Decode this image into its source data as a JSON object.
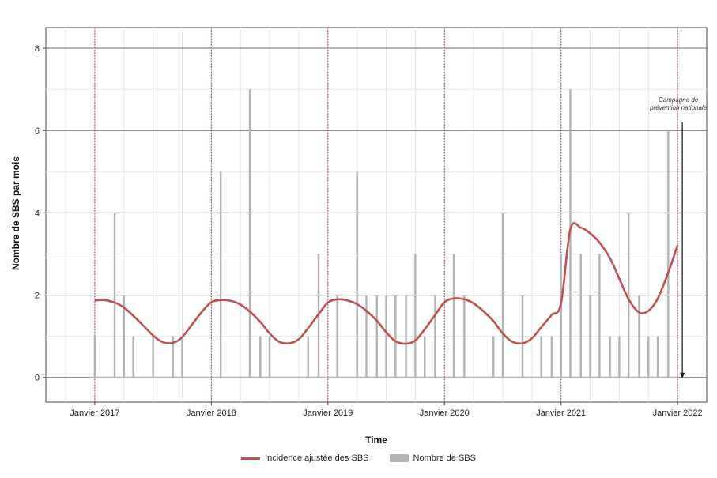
{
  "chart_data": {
    "type": "bar",
    "title": "",
    "xlabel": "Time",
    "ylabel": "Nombre de SBS par mois",
    "xlim": [
      2016.58,
      2022.25
    ],
    "ylim": [
      -0.6,
      8.5
    ],
    "y_ticks": [
      0,
      2,
      4,
      6,
      8
    ],
    "x_ticks": [
      {
        "x": 2017,
        "label": "Janvier 2017"
      },
      {
        "x": 2018,
        "label": "Janvier 2018"
      },
      {
        "x": 2019,
        "label": "Janvier 2019"
      },
      {
        "x": 2020,
        "label": "Janvier 2020"
      },
      {
        "x": 2021,
        "label": "Janvier 2021"
      },
      {
        "x": 2022,
        "label": "Janvier 2022"
      }
    ],
    "vertical_reference_lines": [
      2017,
      2018,
      2019,
      2020,
      2021,
      2022
    ],
    "grid": true,
    "legend_position": "bottom",
    "series": [
      {
        "name": "Nombre de SBS",
        "type": "bar",
        "color": "#b3b3b3",
        "points": [
          [
            2017.0,
            1
          ],
          [
            2017.17,
            4
          ],
          [
            2017.25,
            2
          ],
          [
            2017.33,
            1
          ],
          [
            2017.5,
            1
          ],
          [
            2017.67,
            1
          ],
          [
            2017.75,
            1
          ],
          [
            2018.08,
            5
          ],
          [
            2018.33,
            7
          ],
          [
            2018.42,
            1
          ],
          [
            2018.5,
            1
          ],
          [
            2018.83,
            1
          ],
          [
            2018.92,
            3
          ],
          [
            2019.08,
            2
          ],
          [
            2019.25,
            5
          ],
          [
            2019.33,
            2
          ],
          [
            2019.42,
            2
          ],
          [
            2019.5,
            2
          ],
          [
            2019.58,
            2
          ],
          [
            2019.67,
            2
          ],
          [
            2019.75,
            3
          ],
          [
            2019.83,
            1
          ],
          [
            2019.92,
            2
          ],
          [
            2019.92,
            1
          ],
          [
            2020.08,
            3
          ],
          [
            2020.17,
            2
          ],
          [
            2020.42,
            1
          ],
          [
            2020.5,
            4
          ],
          [
            2020.67,
            2
          ],
          [
            2020.83,
            1
          ],
          [
            2020.92,
            1
          ],
          [
            2021.0,
            3
          ],
          [
            2021.08,
            7
          ],
          [
            2021.17,
            3
          ],
          [
            2021.25,
            2
          ],
          [
            2021.33,
            3
          ],
          [
            2021.42,
            1
          ],
          [
            2021.5,
            1
          ],
          [
            2021.58,
            4
          ],
          [
            2021.67,
            2
          ],
          [
            2021.75,
            1
          ],
          [
            2021.83,
            1
          ],
          [
            2021.92,
            6
          ]
        ]
      },
      {
        "name": "Incidence ajustée des SBS",
        "type": "line",
        "color": "#c0504d",
        "points": [
          [
            2017.0,
            1.87
          ],
          [
            2017.08,
            1.88
          ],
          [
            2017.17,
            1.82
          ],
          [
            2017.25,
            1.7
          ],
          [
            2017.33,
            1.5
          ],
          [
            2017.42,
            1.25
          ],
          [
            2017.5,
            1.02
          ],
          [
            2017.58,
            0.86
          ],
          [
            2017.67,
            0.84
          ],
          [
            2017.75,
            0.98
          ],
          [
            2017.83,
            1.27
          ],
          [
            2017.92,
            1.6
          ],
          [
            2018.0,
            1.83
          ],
          [
            2018.08,
            1.88
          ],
          [
            2018.17,
            1.86
          ],
          [
            2018.25,
            1.77
          ],
          [
            2018.33,
            1.6
          ],
          [
            2018.42,
            1.35
          ],
          [
            2018.5,
            1.07
          ],
          [
            2018.58,
            0.87
          ],
          [
            2018.67,
            0.83
          ],
          [
            2018.75,
            0.93
          ],
          [
            2018.83,
            1.2
          ],
          [
            2018.92,
            1.54
          ],
          [
            2019.0,
            1.82
          ],
          [
            2019.08,
            1.9
          ],
          [
            2019.17,
            1.87
          ],
          [
            2019.25,
            1.78
          ],
          [
            2019.33,
            1.62
          ],
          [
            2019.42,
            1.38
          ],
          [
            2019.5,
            1.1
          ],
          [
            2019.58,
            0.88
          ],
          [
            2019.67,
            0.82
          ],
          [
            2019.75,
            0.9
          ],
          [
            2019.83,
            1.17
          ],
          [
            2019.92,
            1.52
          ],
          [
            2020.0,
            1.83
          ],
          [
            2020.08,
            1.92
          ],
          [
            2020.17,
            1.9
          ],
          [
            2020.25,
            1.8
          ],
          [
            2020.33,
            1.62
          ],
          [
            2020.42,
            1.37
          ],
          [
            2020.5,
            1.07
          ],
          [
            2020.58,
            0.87
          ],
          [
            2020.67,
            0.83
          ],
          [
            2020.75,
            0.95
          ],
          [
            2020.83,
            1.22
          ],
          [
            2020.92,
            1.52
          ],
          [
            2021.0,
            1.8
          ],
          [
            2021.08,
            3.6
          ],
          [
            2021.17,
            3.64
          ],
          [
            2021.25,
            3.5
          ],
          [
            2021.33,
            3.28
          ],
          [
            2021.42,
            2.9
          ],
          [
            2021.5,
            2.4
          ],
          [
            2021.58,
            1.9
          ],
          [
            2021.67,
            1.58
          ],
          [
            2021.75,
            1.62
          ],
          [
            2021.83,
            1.92
          ],
          [
            2021.92,
            2.55
          ],
          [
            2022.0,
            3.22
          ]
        ]
      }
    ],
    "annotation": {
      "text": [
        "Campagne de",
        "prévention nationale"
      ],
      "x": 2022.0,
      "y_start": 6.2,
      "y_end": 0
    }
  }
}
